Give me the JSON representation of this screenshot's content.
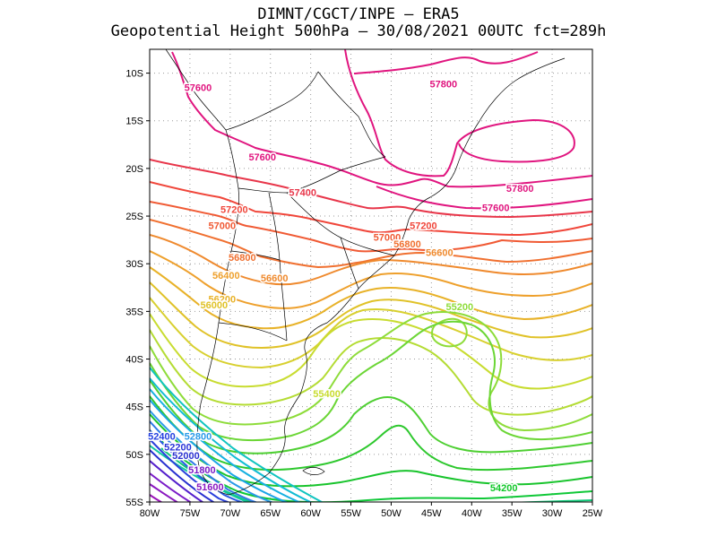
{
  "title": {
    "line1": "DIMNT/CGCT/INPE  –  ERA5",
    "line2": "Geopotential Height 500hPa –  30/08/2021 00UTC fct=289h"
  },
  "axes": {
    "lon_labels": [
      "80W",
      "75W",
      "70W",
      "65W",
      "60W",
      "55W",
      "50W",
      "45W",
      "40W",
      "35W",
      "30W",
      "25W"
    ],
    "lat_labels": [
      "10S",
      "15S",
      "20S",
      "25S",
      "30S",
      "35S",
      "40S",
      "45S",
      "50S",
      "55S"
    ]
  },
  "contour_labels": [
    {
      "text": "57800",
      "lon": -43.5,
      "lat": -11.1,
      "color": "#e0157f"
    },
    {
      "text": "57600",
      "lon": -74.0,
      "lat": -11.5,
      "color": "#e0157f"
    },
    {
      "text": "57600",
      "lon": -66.0,
      "lat": -18.8,
      "color": "#e0157f"
    },
    {
      "text": "57800",
      "lon": -34.0,
      "lat": -22.1,
      "color": "#e0157f"
    },
    {
      "text": "57600",
      "lon": -37.0,
      "lat": -24.1,
      "color": "#e0157f"
    },
    {
      "text": "57400",
      "lon": -61.0,
      "lat": -22.5,
      "color": "#e8364a"
    },
    {
      "text": "57200",
      "lon": -69.5,
      "lat": -24.3,
      "color": "#f0463a"
    },
    {
      "text": "57000",
      "lon": -71.0,
      "lat": -26.0,
      "color": "#f05a34"
    },
    {
      "text": "57200",
      "lon": -46.0,
      "lat": -26.0,
      "color": "#f0463a"
    },
    {
      "text": "57000",
      "lon": -50.5,
      "lat": -27.2,
      "color": "#f05a34"
    },
    {
      "text": "56800",
      "lon": -48.0,
      "lat": -27.9,
      "color": "#f07030"
    },
    {
      "text": "56600",
      "lon": -44.0,
      "lat": -28.8,
      "color": "#ef8a2e"
    },
    {
      "text": "56800",
      "lon": -68.5,
      "lat": -29.3,
      "color": "#f07030"
    },
    {
      "text": "56600",
      "lon": -64.5,
      "lat": -31.5,
      "color": "#ef8a2e"
    },
    {
      "text": "56400",
      "lon": -70.5,
      "lat": -31.2,
      "color": "#eea02c"
    },
    {
      "text": "56200",
      "lon": -71.0,
      "lat": -33.7,
      "color": "#e8b228"
    },
    {
      "text": "56000",
      "lon": -72.0,
      "lat": -34.3,
      "color": "#e0c228"
    },
    {
      "text": "55200",
      "lon": -41.5,
      "lat": -34.5,
      "color": "#8edc3a"
    },
    {
      "text": "55400",
      "lon": -58.0,
      "lat": -43.6,
      "color": "#c8dc30"
    },
    {
      "text": "52400",
      "lon": -78.5,
      "lat": -48.1,
      "color": "#2440e0"
    },
    {
      "text": "52800",
      "lon": -74.0,
      "lat": -48.1,
      "color": "#2a9ae8"
    },
    {
      "text": "52200",
      "lon": -76.5,
      "lat": -49.2,
      "color": "#2a34d8"
    },
    {
      "text": "52000",
      "lon": -75.5,
      "lat": -50.1,
      "color": "#2830d0"
    },
    {
      "text": "51800",
      "lon": -73.5,
      "lat": -51.6,
      "color": "#7a1cc8"
    },
    {
      "text": "51600",
      "lon": -72.5,
      "lat": -53.4,
      "color": "#8a18c0"
    },
    {
      "text": "54200",
      "lon": -36.0,
      "lat": -53.5,
      "color": "#10c828"
    }
  ]
}
